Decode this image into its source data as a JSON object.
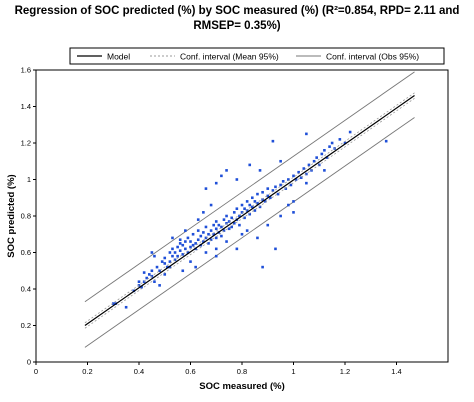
{
  "chart_data": {
    "type": "scatter",
    "title_lines": [
      "Regression of SOC predicted (%) by SOC measured (%) (R²=0.854, RPD= 2.11 and",
      "RMSEP= 0.35%)"
    ],
    "xlabel": "SOC measured (%)",
    "ylabel": "SOC predicted (%)",
    "xlim": [
      0,
      1.6
    ],
    "ylim": [
      0,
      1.6
    ],
    "xticks": [
      "0",
      "0.2",
      "0.4",
      "0.6",
      "0.8",
      "1",
      "1.2",
      "1.4"
    ],
    "yticks": [
      "0",
      "0.2",
      "0.4",
      "0.6",
      "0.8",
      "1",
      "1.2",
      "1.4",
      "1.6"
    ],
    "legend": {
      "placement": "top",
      "entries": [
        {
          "label": "Model",
          "style": "solid",
          "color": "#000000"
        },
        {
          "label": "Conf. interval (Mean 95%)",
          "style": "dotted",
          "color": "#999999"
        },
        {
          "label": "Conf. interval (Obs 95%)",
          "style": "solid",
          "color": "#777777"
        }
      ]
    },
    "model_line": {
      "x": [
        0.19,
        1.47
      ],
      "y": [
        0.2,
        1.46
      ]
    },
    "mean_ci_upper": {
      "x": [
        0.19,
        1.47
      ],
      "y": [
        0.215,
        1.475
      ]
    },
    "mean_ci_lower": {
      "x": [
        0.19,
        1.47
      ],
      "y": [
        0.185,
        1.445
      ]
    },
    "obs_ci_upper": {
      "x": [
        0.19,
        1.47
      ],
      "y": [
        0.33,
        1.59
      ]
    },
    "obs_ci_lower": {
      "x": [
        0.19,
        1.47
      ],
      "y": [
        0.08,
        1.34
      ]
    },
    "point_color": "#1f4fd8",
    "points": [
      [
        0.3,
        0.32
      ],
      [
        0.31,
        0.32
      ],
      [
        0.35,
        0.3
      ],
      [
        0.38,
        0.39
      ],
      [
        0.4,
        0.42
      ],
      [
        0.4,
        0.44
      ],
      [
        0.41,
        0.41
      ],
      [
        0.42,
        0.44
      ],
      [
        0.42,
        0.49
      ],
      [
        0.43,
        0.46
      ],
      [
        0.44,
        0.48
      ],
      [
        0.45,
        0.47
      ],
      [
        0.45,
        0.5
      ],
      [
        0.46,
        0.44
      ],
      [
        0.47,
        0.52
      ],
      [
        0.48,
        0.5
      ],
      [
        0.49,
        0.55
      ],
      [
        0.5,
        0.48
      ],
      [
        0.5,
        0.54
      ],
      [
        0.5,
        0.57
      ],
      [
        0.51,
        0.52
      ],
      [
        0.52,
        0.6
      ],
      [
        0.52,
        0.55
      ],
      [
        0.53,
        0.58
      ],
      [
        0.53,
        0.62
      ],
      [
        0.54,
        0.56
      ],
      [
        0.54,
        0.6
      ],
      [
        0.55,
        0.58
      ],
      [
        0.55,
        0.63
      ],
      [
        0.56,
        0.61
      ],
      [
        0.56,
        0.65
      ],
      [
        0.57,
        0.59
      ],
      [
        0.57,
        0.64
      ],
      [
        0.58,
        0.62
      ],
      [
        0.58,
        0.66
      ],
      [
        0.59,
        0.6
      ],
      [
        0.59,
        0.68
      ],
      [
        0.6,
        0.63
      ],
      [
        0.6,
        0.66
      ],
      [
        0.61,
        0.64
      ],
      [
        0.61,
        0.7
      ],
      [
        0.62,
        0.65
      ],
      [
        0.62,
        0.62
      ],
      [
        0.63,
        0.67
      ],
      [
        0.63,
        0.72
      ],
      [
        0.64,
        0.64
      ],
      [
        0.64,
        0.69
      ],
      [
        0.65,
        0.66
      ],
      [
        0.65,
        0.71
      ],
      [
        0.66,
        0.68
      ],
      [
        0.66,
        0.74
      ],
      [
        0.67,
        0.65
      ],
      [
        0.67,
        0.7
      ],
      [
        0.68,
        0.72
      ],
      [
        0.68,
        0.67
      ],
      [
        0.69,
        0.75
      ],
      [
        0.69,
        0.7
      ],
      [
        0.7,
        0.73
      ],
      [
        0.7,
        0.68
      ],
      [
        0.7,
        0.77
      ],
      [
        0.71,
        0.71
      ],
      [
        0.71,
        0.75
      ],
      [
        0.72,
        0.74
      ],
      [
        0.72,
        0.69
      ],
      [
        0.73,
        0.78
      ],
      [
        0.73,
        0.72
      ],
      [
        0.74,
        0.76
      ],
      [
        0.74,
        0.8
      ],
      [
        0.75,
        0.73
      ],
      [
        0.75,
        0.77
      ],
      [
        0.76,
        0.79
      ],
      [
        0.76,
        0.74
      ],
      [
        0.77,
        0.82
      ],
      [
        0.77,
        0.76
      ],
      [
        0.78,
        0.78
      ],
      [
        0.78,
        0.84
      ],
      [
        0.79,
        0.8
      ],
      [
        0.79,
        0.75
      ],
      [
        0.8,
        0.82
      ],
      [
        0.8,
        0.86
      ],
      [
        0.81,
        0.79
      ],
      [
        0.81,
        0.84
      ],
      [
        0.82,
        0.83
      ],
      [
        0.82,
        0.88
      ],
      [
        0.83,
        0.81
      ],
      [
        0.83,
        0.86
      ],
      [
        0.84,
        0.85
      ],
      [
        0.84,
        0.9
      ],
      [
        0.85,
        0.83
      ],
      [
        0.85,
        0.88
      ],
      [
        0.86,
        0.87
      ],
      [
        0.86,
        0.92
      ],
      [
        0.87,
        0.85
      ],
      [
        0.88,
        0.89
      ],
      [
        0.88,
        0.93
      ],
      [
        0.89,
        0.88
      ],
      [
        0.9,
        0.91
      ],
      [
        0.9,
        0.95
      ],
      [
        0.91,
        0.9
      ],
      [
        0.92,
        0.94
      ],
      [
        0.93,
        0.96
      ],
      [
        0.94,
        0.92
      ],
      [
        0.95,
        0.97
      ],
      [
        0.96,
        0.99
      ],
      [
        0.97,
        0.95
      ],
      [
        0.98,
        1.0
      ],
      [
        0.99,
        0.97
      ],
      [
        1.0,
        1.02
      ],
      [
        1.01,
        1.0
      ],
      [
        1.02,
        1.04
      ],
      [
        1.03,
        1.01
      ],
      [
        1.04,
        1.06
      ],
      [
        1.05,
        1.03
      ],
      [
        1.06,
        1.08
      ],
      [
        1.07,
        1.05
      ],
      [
        1.08,
        1.1
      ],
      [
        1.09,
        1.12
      ],
      [
        1.1,
        1.08
      ],
      [
        1.11,
        1.14
      ],
      [
        1.12,
        1.16
      ],
      [
        1.13,
        1.12
      ],
      [
        1.14,
        1.18
      ],
      [
        1.15,
        1.2
      ],
      [
        1.16,
        1.17
      ],
      [
        1.18,
        1.22
      ],
      [
        1.2,
        1.2
      ],
      [
        1.22,
        1.26
      ],
      [
        1.36,
        1.21
      ],
      [
        0.74,
        1.05
      ],
      [
        0.72,
        1.02
      ],
      [
        0.83,
        1.08
      ],
      [
        0.92,
        1.21
      ],
      [
        0.87,
        1.05
      ],
      [
        0.78,
        1.0
      ],
      [
        0.95,
        1.1
      ],
      [
        1.05,
        1.25
      ],
      [
        0.63,
        0.78
      ],
      [
        0.68,
        0.86
      ],
      [
        0.66,
        0.95
      ],
      [
        0.7,
        0.98
      ],
      [
        0.58,
        0.72
      ],
      [
        0.53,
        0.68
      ],
      [
        0.45,
        0.6
      ],
      [
        0.65,
        0.82
      ],
      [
        0.6,
        0.55
      ],
      [
        0.7,
        0.58
      ],
      [
        0.66,
        0.6
      ],
      [
        0.8,
        0.7
      ],
      [
        0.88,
        0.52
      ],
      [
        0.93,
        0.62
      ],
      [
        0.78,
        0.62
      ],
      [
        0.7,
        0.62
      ],
      [
        0.9,
        0.75
      ],
      [
        1.0,
        0.88
      ],
      [
        1.0,
        0.82
      ],
      [
        0.95,
        0.8
      ],
      [
        0.86,
        0.68
      ],
      [
        0.57,
        0.5
      ],
      [
        0.48,
        0.42
      ],
      [
        0.52,
        0.52
      ],
      [
        0.62,
        0.52
      ],
      [
        0.74,
        0.66
      ],
      [
        0.82,
        0.72
      ],
      [
        0.98,
        0.86
      ],
      [
        1.05,
        0.98
      ],
      [
        1.12,
        1.05
      ],
      [
        0.46,
        0.58
      ],
      [
        0.56,
        0.67
      ]
    ]
  }
}
